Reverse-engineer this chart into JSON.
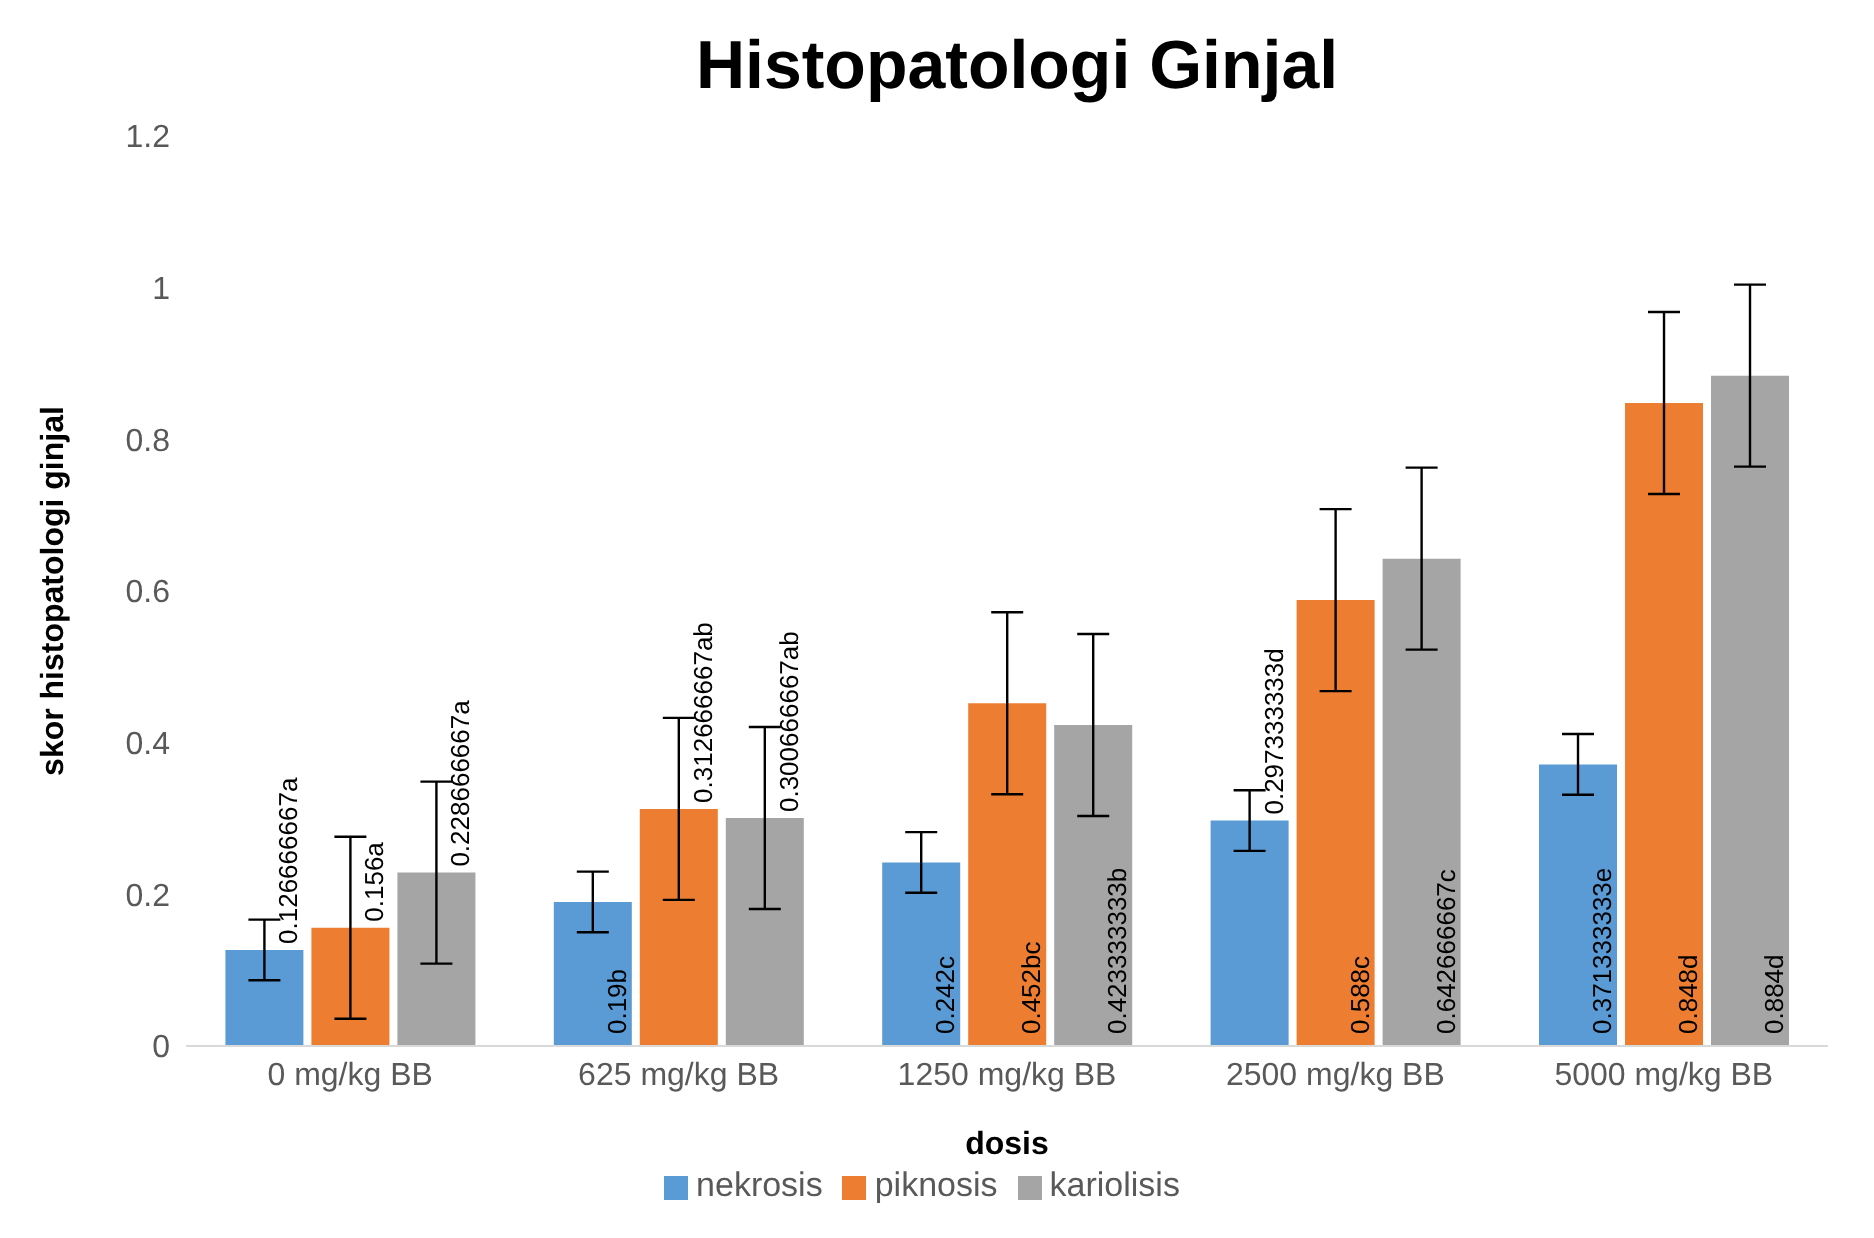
{
  "chart_data": {
    "type": "bar",
    "title": "Histopatologi Ginjal",
    "xlabel": "dosis",
    "ylabel": "skor histopatologi ginjal",
    "categories": [
      "0 mg/kg BB",
      "625 mg/kg BB",
      "1250 mg/kg BB",
      "2500 mg/kg BB",
      "5000 mg/kg BB"
    ],
    "series": [
      {
        "name": "nekrosis",
        "color": "#5b9bd5",
        "values": [
          0.126666667,
          0.19,
          0.242,
          0.297333333,
          0.371333333
        ],
        "errors": [
          0.04,
          0.04,
          0.04,
          0.04,
          0.04
        ],
        "value_labels": [
          "0.126666667a",
          "0.19b",
          "0.242c",
          "0.297333333d",
          "0.371333333e"
        ]
      },
      {
        "name": "piknosis",
        "color": "#ed7d31",
        "values": [
          0.156,
          0.312666667,
          0.452,
          0.588,
          0.848
        ],
        "errors": [
          0.12,
          0.12,
          0.12,
          0.12,
          0.12
        ],
        "value_labels": [
          "0.156a",
          "0.312666667ab",
          "0.452bc",
          "0.588c",
          "0.848d"
        ]
      },
      {
        "name": "kariolisis",
        "color": "#a5a5a5",
        "values": [
          0.228666667,
          0.300666667,
          0.423333333,
          0.642666667,
          0.884
        ],
        "errors": [
          0.12,
          0.12,
          0.12,
          0.12,
          0.12
        ],
        "value_labels": [
          "0.228666667a",
          "0.300666667ab",
          "0.423333333b",
          "0.642666667c",
          "0.884d"
        ]
      }
    ],
    "ylim": [
      0,
      1.2
    ],
    "yticks": [
      0,
      0.2,
      0.4,
      0.6,
      0.8,
      1,
      1.2
    ],
    "grid": false,
    "legend": "bottom"
  }
}
